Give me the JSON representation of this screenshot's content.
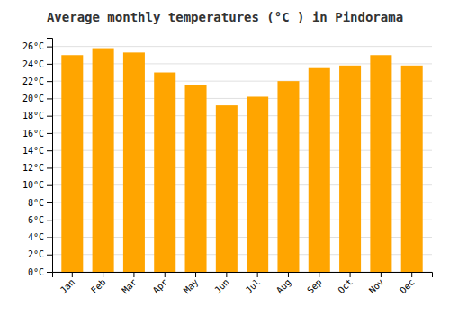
{
  "chart_data": {
    "type": "bar",
    "title": "Average monthly temperatures (°C ) in Pindorama",
    "categories": [
      "Jan",
      "Feb",
      "Mar",
      "Apr",
      "May",
      "Jun",
      "Jul",
      "Aug",
      "Sep",
      "Oct",
      "Nov",
      "Dec"
    ],
    "values": [
      25.0,
      25.8,
      25.3,
      23.0,
      21.5,
      19.2,
      20.2,
      22.0,
      23.5,
      23.8,
      25.0,
      23.8
    ],
    "color": "#FFA500",
    "ylim": [
      0,
      27
    ],
    "yticks": [
      {
        "value": 0,
        "label": "0°C"
      },
      {
        "value": 2,
        "label": "2°C"
      },
      {
        "value": 4,
        "label": "4°C"
      },
      {
        "value": 6,
        "label": "6°C"
      },
      {
        "value": 8,
        "label": "8°C"
      },
      {
        "value": 10,
        "label": "10°C"
      },
      {
        "value": 12,
        "label": "12°C"
      },
      {
        "value": 14,
        "label": "14°C"
      },
      {
        "value": 16,
        "label": "16°C"
      },
      {
        "value": 18,
        "label": "18°C"
      },
      {
        "value": 20,
        "label": "20°C"
      },
      {
        "value": 22,
        "label": "22°C"
      },
      {
        "value": 24,
        "label": "24°C"
      },
      {
        "value": 26,
        "label": "26°C"
      }
    ],
    "grid": true
  }
}
